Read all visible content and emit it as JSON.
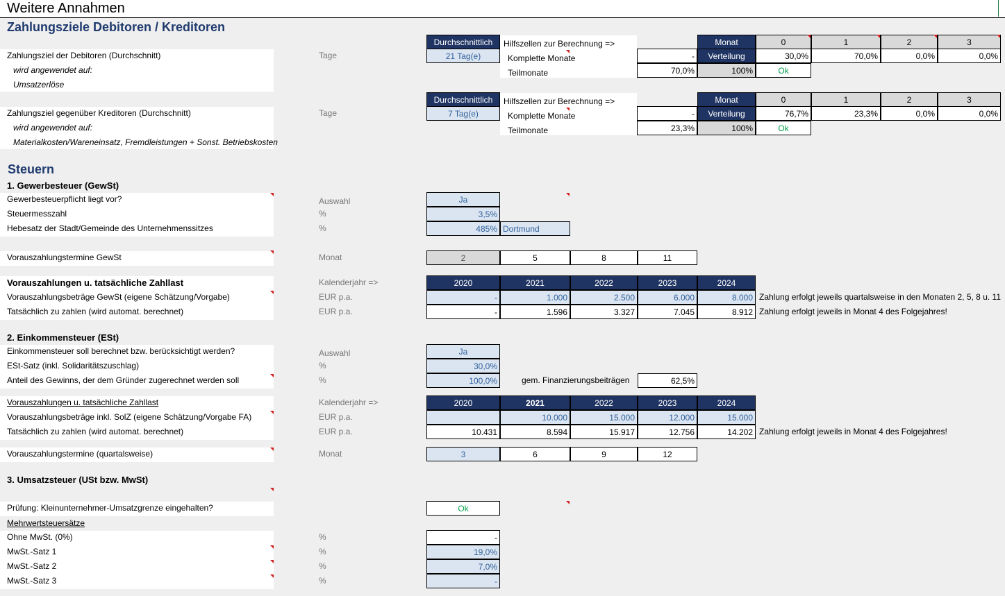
{
  "sheet": {
    "title": "Weitere Annahmen"
  },
  "payment": {
    "heading": "Zahlungsziele Debitoren / Kreditoren",
    "avg_header": "Durchschnittlich",
    "helper_title": "Hilfszellen zur Berechnung =>",
    "full_months": "Komplette Monate",
    "partial_months": "Teilmonate",
    "month_header": "Monat",
    "distribution": "Verteilung",
    "months": [
      "0",
      "1",
      "2",
      "3"
    ],
    "debtors": {
      "label": "Zahlungsziel der Debitoren (Durchschnitt)",
      "applied": "wird angewendet auf:",
      "applied_to": "Umsatzerlöse",
      "unit": "Tage",
      "value": "21 Tag(e)",
      "full_value": "-",
      "partial_value": "70,0%",
      "total": "100%",
      "status": "Ok",
      "dist": [
        "30,0%",
        "70,0%",
        "0,0%",
        "0,0%"
      ]
    },
    "creditors": {
      "label": "Zahlungsziel gegenüber Kreditoren (Durchschnitt)",
      "applied": "wird angewendet auf:",
      "applied_to": "Materialkosten/Wareneinsatz, Fremdleistungen + Sonst. Betriebskosten",
      "unit": "Tage",
      "value": "7 Tag(e)",
      "full_value": "-",
      "partial_value": "23,3%",
      "total": "100%",
      "status": "Ok",
      "dist": [
        "76,7%",
        "23,3%",
        "0,0%",
        "0,0%"
      ]
    }
  },
  "taxes": {
    "heading": "Steuern",
    "gewst": {
      "title": "1. Gewerbesteuer (GewSt)",
      "liable_label": "Gewerbesteuerpflicht liegt vor?",
      "liable_unit": "Auswahl",
      "liable_value": "Ja",
      "rate_label": "Steuermesszahl",
      "rate_unit": "%",
      "rate_value": "3,5%",
      "hebesatz_label": "Hebesatz der Stadt/Gemeinde des Unternehmenssitzes",
      "hebesatz_unit": "%",
      "hebesatz_value": "485%",
      "city": "Dortmund",
      "dates_label": "Vorauszahlungstermine GewSt",
      "dates_unit": "Monat",
      "dates": [
        "2",
        "5",
        "8",
        "11"
      ],
      "prepay_title": "Vorauszahlungen u. tatsächliche Zahllast",
      "year_unit": "Kalenderjahr  =>",
      "years": [
        "2020",
        "2021",
        "2022",
        "2023",
        "2024"
      ],
      "est_label": "Vorauszahlungsbeträge GewSt (eigene Schätzung/Vorgabe)",
      "est_unit": "EUR p.a.",
      "est_values": [
        "-",
        "1.000",
        "2.500",
        "6.000",
        "8.000"
      ],
      "est_note": "Zahlung erfolgt jeweils quartalsweise in den Monaten 2, 5, 8 u. 11",
      "actual_label": "Tatsächlich zu zahlen (wird automat. berechnet)",
      "actual_unit": "EUR p.a.",
      "actual_values": [
        "-",
        "1.596",
        "3.327",
        "7.045",
        "8.912"
      ],
      "actual_note": "Zahlung erfolgt jeweils in Monat 4 des Folgejahres!"
    },
    "est": {
      "title": "2. Einkommensteuer (ESt)",
      "calc_label": "Einkommensteuer soll berechnet bzw. berücksichtigt werden?",
      "calc_unit": "Auswahl",
      "calc_value": "Ja",
      "rate_label": "ESt-Satz (inkl. Solidaritätszuschlag)",
      "rate_unit": "%",
      "rate_value": "30,0%",
      "share_label": "Anteil des Gewinns, der dem Gründer zugerechnet werden soll",
      "share_unit": "%",
      "share_value": "100,0%",
      "financing_label": "gem. Finanzierungsbeiträgen",
      "financing_value": "62,5%",
      "prepay_title": "Vorauszahlungen u. tatsächliche Zahllast",
      "year_unit": "Kalenderjahr  =>",
      "years": [
        "2020",
        "2021",
        "2022",
        "2023",
        "2024"
      ],
      "est_label": "Vorauszahlungsbeträge inkl. SolZ (eigene Schätzung/Vorgabe FA)",
      "est_unit": "EUR p.a.",
      "est_values": [
        "",
        "10.000",
        "15.000",
        "12.000",
        "15.000"
      ],
      "actual_label": "Tatsächlich zu zahlen (wird automat. berechnet)",
      "actual_unit": "EUR p.a.",
      "actual_values": [
        "10.431",
        "8.594",
        "15.917",
        "12.756",
        "14.202"
      ],
      "actual_note": "Zahlung erfolgt jeweils in Monat 4 des Folgejahres!",
      "dates_label": "Vorauszahlungstermine (quartalsweise)",
      "dates_unit": "Monat",
      "dates": [
        "3",
        "6",
        "9",
        "12"
      ]
    },
    "ust": {
      "title": "3. Umsatzsteuer (USt bzw. MwSt)",
      "check_label": "Prüfung: Kleinunternehmer-Umsatzgrenze eingehalten?",
      "check_value": "Ok",
      "rates_title": "Mehrwertsteuersätze",
      "rates": [
        {
          "label": "Ohne MwSt. (0%)",
          "unit": "%",
          "value": "-"
        },
        {
          "label": "MwSt.-Satz 1",
          "unit": "%",
          "value": "19,0%"
        },
        {
          "label": "MwSt.-Satz 2",
          "unit": "%",
          "value": "7,0%"
        },
        {
          "label": "MwSt.-Satz 3",
          "unit": "%",
          "value": "-"
        }
      ]
    }
  },
  "colors": {
    "navy": "#1f3463",
    "input_bg": "#dbe5f1",
    "input_text": "#2f5f9a",
    "ok": "#00a04a",
    "heading": "#1f3a6e",
    "marker": "#d21f1f"
  }
}
